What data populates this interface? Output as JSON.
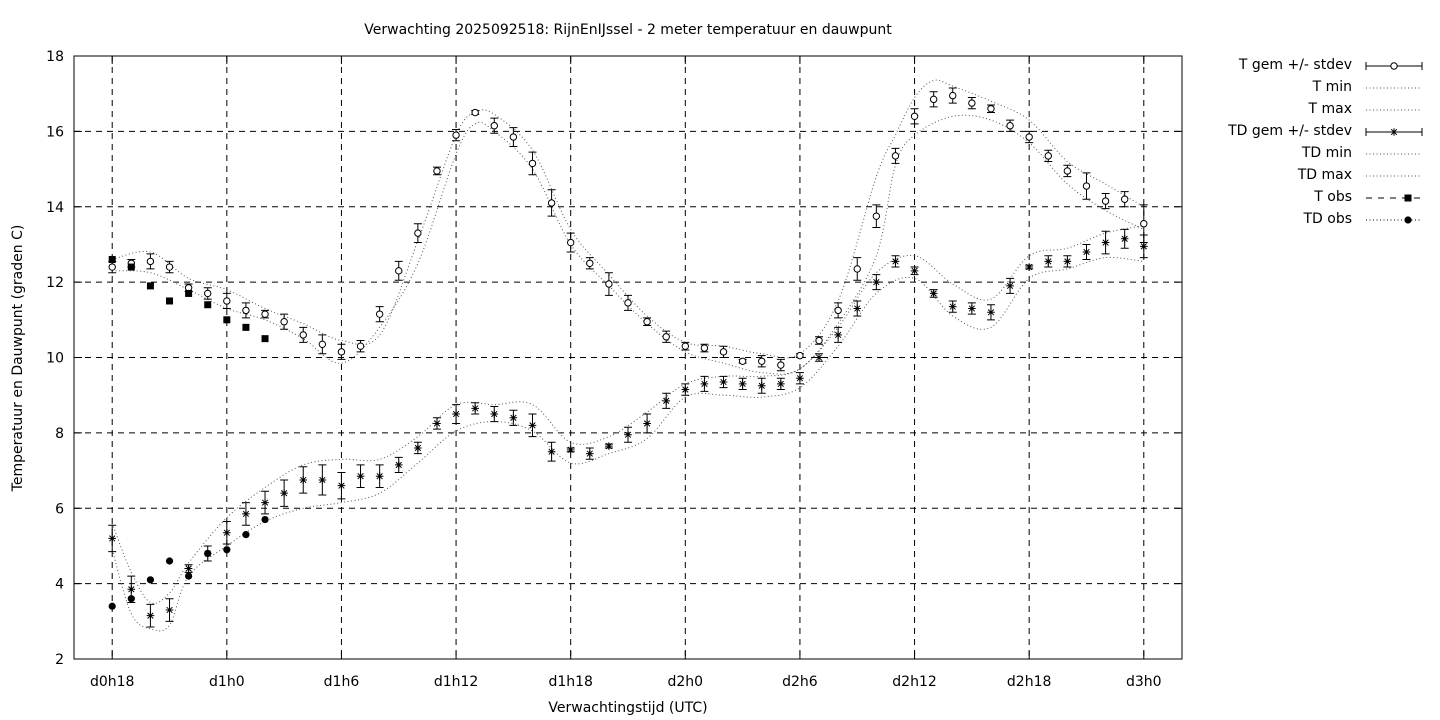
{
  "chart_data": {
    "type": "line",
    "title": "Verwachting 2025092518: RijnEnIJssel - 2 meter temperatuur en dauwpunt",
    "xlabel": "Verwachtingstijd (UTC)",
    "ylabel": "Temperatuur en Dauwpunt (graden C)",
    "xlim": [
      -2,
      56
    ],
    "ylim": [
      2,
      18
    ],
    "x_ticks": [
      {
        "x": 0,
        "label": "d0h18"
      },
      {
        "x": 6,
        "label": "d1h0"
      },
      {
        "x": 12,
        "label": "d1h6"
      },
      {
        "x": 18,
        "label": "d1h12"
      },
      {
        "x": 24,
        "label": "d1h18"
      },
      {
        "x": 30,
        "label": "d2h0"
      },
      {
        "x": 36,
        "label": "d2h6"
      },
      {
        "x": 42,
        "label": "d2h12"
      },
      {
        "x": 48,
        "label": "d2h18"
      },
      {
        "x": 54,
        "label": "d3h0"
      }
    ],
    "y_ticks": [
      2,
      4,
      6,
      8,
      10,
      12,
      14,
      16,
      18
    ],
    "grid": true,
    "legend_position": "outside-right",
    "series": [
      {
        "name": "T gem +/- stdev",
        "marker": "open-circle",
        "x": [
          0,
          1,
          2,
          3,
          4,
          5,
          6,
          7,
          8,
          9,
          10,
          11,
          12,
          13,
          14,
          15,
          16,
          17,
          18,
          19,
          20,
          21,
          22,
          23,
          24,
          25,
          26,
          27,
          28,
          29,
          30,
          31,
          32,
          33,
          34,
          35,
          36,
          37,
          38,
          39,
          40,
          41,
          42,
          43,
          44,
          45,
          46,
          47,
          48,
          49,
          50,
          51,
          52,
          53,
          54
        ],
        "y": [
          12.4,
          12.5,
          12.55,
          12.4,
          11.85,
          11.7,
          11.5,
          11.25,
          11.15,
          10.95,
          10.6,
          10.35,
          10.15,
          10.3,
          11.15,
          12.3,
          13.3,
          14.95,
          15.9,
          16.5,
          16.15,
          15.85,
          15.15,
          14.1,
          13.05,
          12.5,
          11.95,
          11.45,
          10.95,
          10.55,
          10.3,
          10.25,
          10.15,
          9.9,
          9.9,
          9.8,
          10.05,
          10.45,
          11.25,
          12.35,
          13.75,
          15.35,
          16.4,
          16.85,
          16.95,
          16.75,
          16.6,
          16.15,
          15.85,
          15.35,
          14.95,
          14.55,
          14.15,
          14.2,
          13.55
        ],
        "stdev": [
          0.15,
          0.1,
          0.2,
          0.15,
          0.1,
          0.15,
          0.2,
          0.2,
          0.1,
          0.2,
          0.2,
          0.25,
          0.2,
          0.15,
          0.2,
          0.25,
          0.25,
          0.1,
          0.15,
          0.05,
          0.2,
          0.25,
          0.3,
          0.35,
          0.25,
          0.15,
          0.3,
          0.2,
          0.1,
          0.15,
          0.1,
          0.1,
          0.15,
          0.05,
          0.15,
          0.15,
          0.05,
          0.1,
          0.2,
          0.3,
          0.3,
          0.2,
          0.2,
          0.2,
          0.2,
          0.15,
          0.1,
          0.15,
          0.15,
          0.15,
          0.15,
          0.35,
          0.2,
          0.2,
          0.5
        ]
      },
      {
        "name": "T min",
        "line": "dotted",
        "x": [
          0,
          2,
          4,
          6,
          8,
          10,
          12,
          14,
          16,
          18,
          19,
          20,
          22,
          24,
          26,
          28,
          30,
          32,
          34,
          36,
          38,
          40,
          41,
          42,
          44,
          46,
          48,
          50,
          52,
          54
        ],
        "y": [
          12.3,
          12.25,
          11.8,
          11.3,
          11.0,
          10.5,
          9.85,
          10.8,
          12.5,
          15.4,
          16.2,
          16.0,
          15.0,
          13.0,
          11.9,
          10.9,
          10.15,
          9.85,
          9.6,
          9.7,
          10.9,
          12.7,
          15.1,
          15.9,
          16.4,
          16.3,
          15.7,
          14.6,
          13.9,
          13.4
        ]
      },
      {
        "name": "T max",
        "line": "dotted",
        "x": [
          0,
          2,
          4,
          6,
          8,
          10,
          12,
          14,
          16,
          18,
          19,
          20,
          22,
          24,
          26,
          28,
          30,
          32,
          34,
          36,
          38,
          40,
          41,
          42,
          43,
          44,
          46,
          48,
          50,
          52,
          54
        ],
        "y": [
          12.6,
          12.8,
          12.1,
          11.8,
          11.3,
          10.9,
          10.45,
          10.6,
          13.1,
          15.9,
          16.5,
          16.45,
          15.5,
          13.4,
          12.2,
          11.1,
          10.4,
          10.3,
          10.1,
          10.1,
          11.5,
          14.8,
          15.9,
          16.9,
          17.35,
          17.2,
          16.8,
          16.3,
          15.2,
          14.6,
          14.0
        ]
      },
      {
        "name": "TD gem +/- stdev",
        "marker": "star",
        "x": [
          0,
          1,
          2,
          3,
          4,
          5,
          6,
          7,
          8,
          9,
          10,
          11,
          12,
          13,
          14,
          15,
          16,
          17,
          18,
          19,
          20,
          21,
          22,
          23,
          24,
          25,
          26,
          27,
          28,
          29,
          30,
          31,
          32,
          33,
          34,
          35,
          36,
          37,
          38,
          39,
          40,
          41,
          42,
          43,
          44,
          45,
          46,
          47,
          48,
          49,
          50,
          51,
          52,
          53,
          54
        ],
        "y": [
          5.2,
          3.85,
          3.15,
          3.3,
          4.4,
          4.8,
          5.35,
          5.85,
          6.15,
          6.4,
          6.75,
          6.75,
          6.6,
          6.85,
          6.85,
          7.15,
          7.6,
          8.25,
          8.5,
          8.65,
          8.5,
          8.4,
          8.2,
          7.5,
          7.55,
          7.45,
          7.65,
          7.95,
          8.25,
          8.85,
          9.15,
          9.3,
          9.35,
          9.3,
          9.25,
          9.3,
          9.45,
          10.0,
          10.6,
          11.3,
          12.0,
          12.55,
          12.3,
          11.7,
          11.35,
          11.3,
          11.2,
          11.9,
          12.4,
          12.55,
          12.55,
          12.8,
          13.05,
          13.15,
          12.95
        ],
        "stdev": [
          0.35,
          0.35,
          0.3,
          0.3,
          0.1,
          0.2,
          0.3,
          0.3,
          0.3,
          0.35,
          0.35,
          0.4,
          0.35,
          0.3,
          0.3,
          0.2,
          0.15,
          0.15,
          0.25,
          0.15,
          0.2,
          0.2,
          0.3,
          0.25,
          0.05,
          0.15,
          0.05,
          0.2,
          0.25,
          0.2,
          0.15,
          0.2,
          0.15,
          0.15,
          0.2,
          0.15,
          0.15,
          0.1,
          0.2,
          0.2,
          0.2,
          0.15,
          0.1,
          0.1,
          0.15,
          0.15,
          0.2,
          0.2,
          0.05,
          0.15,
          0.15,
          0.2,
          0.3,
          0.25,
          0.3
        ]
      },
      {
        "name": "TD min",
        "line": "dotted",
        "x": [
          0,
          1,
          2,
          3,
          4,
          6,
          8,
          10,
          12,
          14,
          16,
          18,
          20,
          22,
          24,
          26,
          28,
          30,
          32,
          34,
          36,
          38,
          40,
          42,
          44,
          46,
          48,
          50,
          52,
          54
        ],
        "y": [
          4.9,
          3.2,
          2.8,
          2.9,
          4.2,
          5.0,
          5.65,
          6.0,
          6.15,
          6.4,
          7.2,
          8.05,
          8.3,
          8.05,
          7.2,
          7.45,
          7.85,
          8.95,
          9.0,
          8.95,
          9.2,
          10.3,
          11.7,
          12.1,
          11.1,
          10.8,
          12.1,
          12.35,
          12.65,
          12.55
        ]
      },
      {
        "name": "TD max",
        "line": "dotted",
        "x": [
          0,
          1,
          2,
          3,
          4,
          6,
          8,
          10,
          12,
          14,
          16,
          18,
          20,
          22,
          24,
          26,
          28,
          30,
          32,
          34,
          36,
          38,
          40,
          42,
          44,
          46,
          48,
          50,
          52,
          54
        ],
        "y": [
          5.6,
          4.3,
          3.5,
          3.75,
          4.55,
          5.75,
          6.55,
          7.15,
          7.3,
          7.3,
          7.9,
          8.75,
          8.75,
          8.75,
          7.75,
          7.9,
          8.55,
          9.3,
          9.5,
          9.5,
          9.7,
          10.8,
          12.25,
          12.7,
          11.95,
          11.55,
          12.7,
          12.9,
          13.3,
          13.5
        ]
      },
      {
        "name": "T obs",
        "marker": "filled-square",
        "x": [
          0,
          1,
          2,
          3,
          4,
          5,
          6,
          7,
          8
        ],
        "y": [
          12.6,
          12.4,
          11.9,
          11.5,
          11.7,
          11.4,
          11.0,
          10.8,
          10.5
        ]
      },
      {
        "name": "TD obs",
        "marker": "filled-circle",
        "x": [
          0,
          1,
          2,
          3,
          4,
          5,
          6,
          7,
          8
        ],
        "y": [
          3.4,
          3.6,
          4.1,
          4.6,
          4.2,
          4.8,
          4.9,
          5.3,
          5.7
        ]
      }
    ]
  }
}
